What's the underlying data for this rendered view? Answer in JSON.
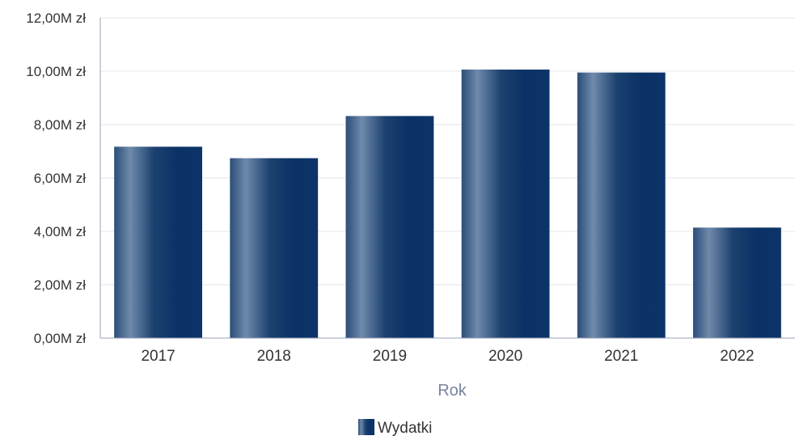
{
  "chart_data": {
    "type": "bar",
    "categories": [
      "2017",
      "2018",
      "2019",
      "2020",
      "2021",
      "2022"
    ],
    "series": [
      {
        "name": "Wydatki",
        "values": [
          7.17,
          6.74,
          8.32,
          10.06,
          9.95,
          4.14
        ]
      }
    ],
    "title": "",
    "xlabel": "Rok",
    "ylabel": "",
    "ylim": [
      0,
      12
    ],
    "yticks": [
      0,
      2,
      4,
      6,
      8,
      10,
      12
    ],
    "ytick_labels": [
      "0,00M zł",
      "2,00M zł",
      "4,00M zł",
      "6,00M zł",
      "8,00M zł",
      "10,00M zł",
      "12,00M zł"
    ],
    "grid": true,
    "legend_position": "bottom-center",
    "colors": {
      "bar_dark": "#0a3266",
      "bar_light": "#6f8aab",
      "grid": "#e6e6e6",
      "axis": "#9aa0b8"
    }
  }
}
